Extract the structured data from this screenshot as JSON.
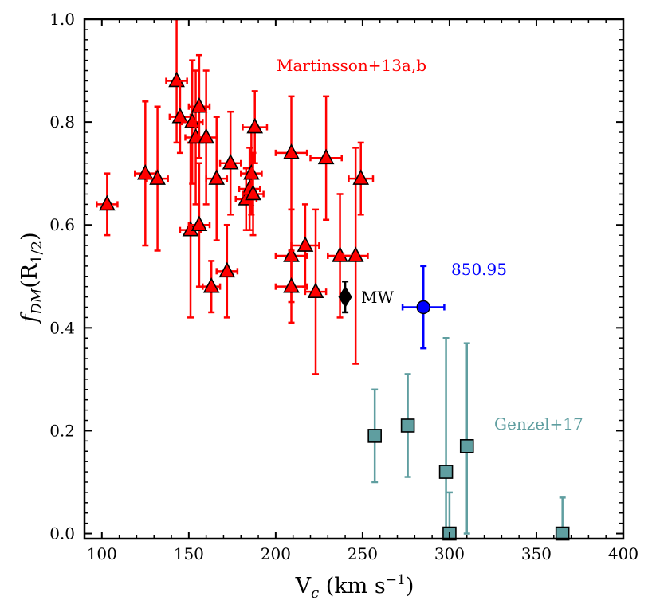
{
  "chart_data": {
    "type": "scatter",
    "title": "",
    "xlabel": {
      "base": "V",
      "sub": "c",
      "rest": " (km s",
      "sup": "−1",
      "end": ")"
    },
    "ylabel": {
      "base": "f",
      "sub": "DM",
      "rest": "(R",
      "sub2": "1/2",
      "end": ")"
    },
    "xlim": [
      90,
      400
    ],
    "ylim": [
      -0.01,
      1.0
    ],
    "xticks": [
      100,
      150,
      200,
      250,
      300,
      350,
      400
    ],
    "xticklabels": [
      "100",
      "150",
      "200",
      "250",
      "300",
      "350",
      "400"
    ],
    "yticks": [
      0.0,
      0.2,
      0.4,
      0.6,
      0.8,
      1.0
    ],
    "yticklabels": [
      "0.0",
      "0.2",
      "0.4",
      "0.6",
      "0.8",
      "1.0"
    ],
    "grid": false,
    "series": [
      {
        "name": "Martinsson+13a,b",
        "marker": "triangle",
        "color": "#ff0000",
        "edgecolor": "#000000",
        "points": [
          {
            "x": 103,
            "y": 0.64,
            "xerr": 6,
            "yerr": [
              0.06,
              0.06
            ]
          },
          {
            "x": 125,
            "y": 0.7,
            "xerr": 6,
            "yerr": [
              0.14,
              0.14
            ]
          },
          {
            "x": 132,
            "y": 0.69,
            "xerr": 6,
            "yerr": [
              0.14,
              0.14
            ]
          },
          {
            "x": 143,
            "y": 0.88,
            "xerr": 6,
            "yerr": [
              0.12,
              0.12
            ]
          },
          {
            "x": 145,
            "y": 0.81,
            "xerr": 6,
            "yerr": [
              0.07,
              0.07
            ]
          },
          {
            "x": 151,
            "y": 0.59,
            "xerr": 6,
            "yerr": [
              0.17,
              0.17
            ]
          },
          {
            "x": 152,
            "y": 0.8,
            "xerr": 6,
            "yerr": [
              0.12,
              0.12
            ]
          },
          {
            "x": 154,
            "y": 0.77,
            "xerr": 6,
            "yerr": [
              0.13,
              0.13
            ]
          },
          {
            "x": 156,
            "y": 0.83,
            "xerr": 6,
            "yerr": [
              0.1,
              0.1
            ]
          },
          {
            "x": 156,
            "y": 0.6,
            "xerr": 6,
            "yerr": [
              0.12,
              0.12
            ]
          },
          {
            "x": 160,
            "y": 0.77,
            "xerr": 6,
            "yerr": [
              0.13,
              0.13
            ]
          },
          {
            "x": 163,
            "y": 0.48,
            "xerr": 5,
            "yerr": [
              0.05,
              0.05
            ]
          },
          {
            "x": 166,
            "y": 0.69,
            "xerr": 6,
            "yerr": [
              0.12,
              0.12
            ]
          },
          {
            "x": 172,
            "y": 0.51,
            "xerr": 6,
            "yerr": [
              0.09,
              0.09
            ]
          },
          {
            "x": 174,
            "y": 0.72,
            "xerr": 6,
            "yerr": [
              0.1,
              0.1
            ]
          },
          {
            "x": 183,
            "y": 0.65,
            "xerr": 6,
            "yerr": [
              0.06,
              0.06
            ]
          },
          {
            "x": 185,
            "y": 0.67,
            "xerr": 6,
            "yerr": [
              0.08,
              0.08
            ]
          },
          {
            "x": 186,
            "y": 0.7,
            "xerr": 6,
            "yerr": [
              0.08,
              0.08
            ]
          },
          {
            "x": 187,
            "y": 0.66,
            "xerr": 6,
            "yerr": [
              0.08,
              0.08
            ]
          },
          {
            "x": 188,
            "y": 0.79,
            "xerr": 7,
            "yerr": [
              0.07,
              0.07
            ]
          },
          {
            "x": 209,
            "y": 0.74,
            "xerr": 9,
            "yerr": [
              0.11,
              0.11
            ]
          },
          {
            "x": 209,
            "y": 0.54,
            "xerr": 9,
            "yerr": [
              0.09,
              0.09
            ]
          },
          {
            "x": 209,
            "y": 0.48,
            "xerr": 9,
            "yerr": [
              0.07,
              0.07
            ]
          },
          {
            "x": 217,
            "y": 0.56,
            "xerr": 8,
            "yerr": [
              0.08,
              0.08
            ]
          },
          {
            "x": 223,
            "y": 0.47,
            "xerr": 6,
            "yerr": [
              0.16,
              0.16
            ]
          },
          {
            "x": 229,
            "y": 0.73,
            "xerr": 9,
            "yerr": [
              0.12,
              0.12
            ]
          },
          {
            "x": 237,
            "y": 0.54,
            "xerr": 7,
            "yerr": [
              0.12,
              0.12
            ]
          },
          {
            "x": 246,
            "y": 0.54,
            "xerr": 7,
            "yerr": [
              0.21,
              0.21
            ]
          },
          {
            "x": 249,
            "y": 0.69,
            "xerr": 7,
            "yerr": [
              0.07,
              0.07
            ]
          }
        ]
      },
      {
        "name": "",
        "marker": "diamond",
        "color": "#000000",
        "label": "MW",
        "points": [
          {
            "x": 240,
            "y": 0.46,
            "xerr": 0,
            "yerr": [
              0.03,
              0.03
            ]
          }
        ]
      },
      {
        "name": "",
        "marker": "circle",
        "color": "#0000ff",
        "label": "850.95",
        "points": [
          {
            "x": 285,
            "y": 0.44,
            "xerr": 12,
            "yerr": [
              0.08,
              0.08
            ]
          }
        ]
      },
      {
        "name": "Genzel+17",
        "marker": "square",
        "color": "#5f9ea0",
        "edgecolor": "#000000",
        "points": [
          {
            "x": 257,
            "y": 0.19,
            "xerr": 0,
            "yerr": [
              0.09,
              0.09
            ]
          },
          {
            "x": 276,
            "y": 0.21,
            "xerr": 0,
            "yerr": [
              0.1,
              0.1
            ]
          },
          {
            "x": 298,
            "y": 0.12,
            "xerr": 0,
            "yerr": [
              0.12,
              0.26
            ]
          },
          {
            "x": 300,
            "y": 0.0,
            "xerr": 0,
            "yerr": [
              0.0,
              0.08
            ]
          },
          {
            "x": 310,
            "y": 0.17,
            "xerr": 0,
            "yerr": [
              0.17,
              0.2
            ]
          },
          {
            "x": 365,
            "y": 0.0,
            "xerr": 0,
            "yerr": [
              0.0,
              0.07
            ]
          }
        ]
      }
    ],
    "annotations": [
      {
        "text": "Martinsson+13a,b",
        "color": "#ff0000"
      },
      {
        "text": "MW",
        "color": "#000000"
      },
      {
        "text": "850.95",
        "color": "#0000ff"
      },
      {
        "text": "Genzel+17",
        "color": "#5f9ea0"
      }
    ]
  }
}
